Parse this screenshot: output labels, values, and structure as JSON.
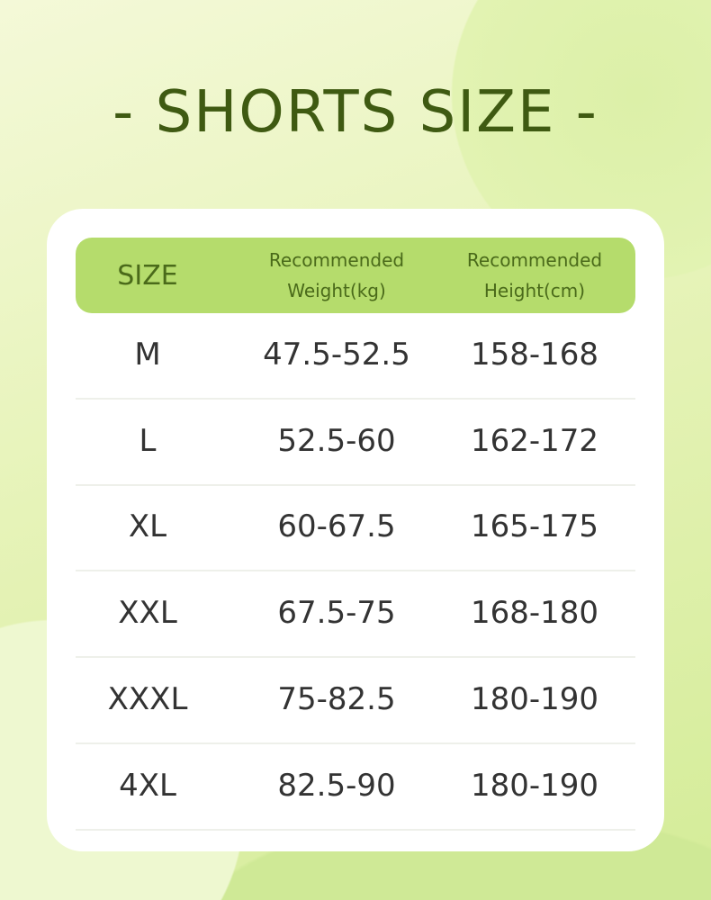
{
  "title": "- SHORTS SIZE -",
  "colors": {
    "header_bg": "#b5dc6c",
    "title": "#3f5a12",
    "header_text": "#4a6a1a"
  },
  "table": {
    "headers": [
      {
        "line1": "SIZE"
      },
      {
        "line1": "Recommended",
        "line2": "Weight(kg)"
      },
      {
        "line1": "Recommended",
        "line2": "Height(cm)"
      }
    ],
    "rows": [
      [
        "M",
        "47.5-52.5",
        "158-168"
      ],
      [
        "L",
        "52.5-60",
        "162-172"
      ],
      [
        "XL",
        "60-67.5",
        "165-175"
      ],
      [
        "XXL",
        "67.5-75",
        "168-180"
      ],
      [
        "XXXL",
        "75-82.5",
        "180-190"
      ],
      [
        "4XL",
        "82.5-90",
        "180-190"
      ]
    ]
  }
}
